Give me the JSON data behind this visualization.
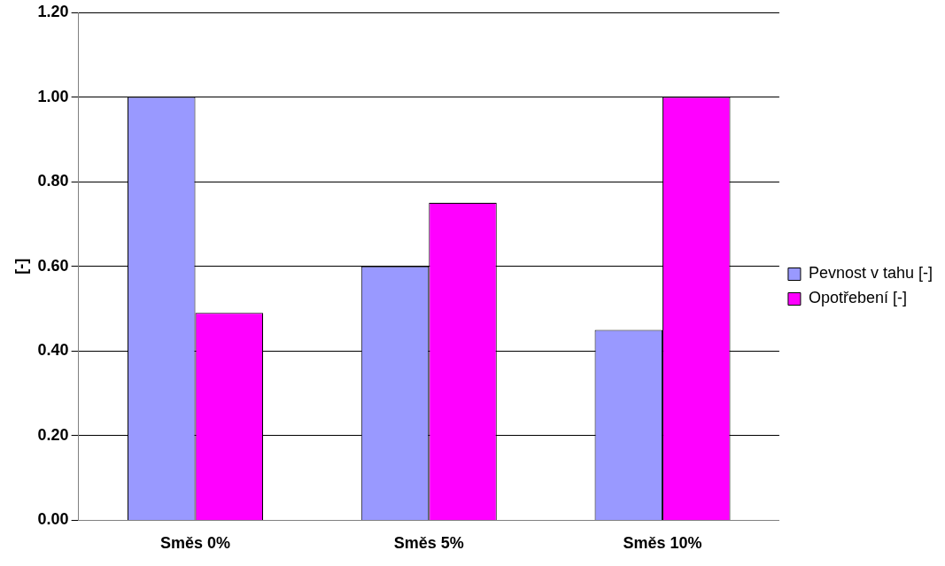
{
  "chart_data": {
    "type": "bar",
    "ylabel": "[-]",
    "categories": [
      "Směs 0%",
      "Směs 5%",
      "Směs 10%"
    ],
    "series": [
      {
        "name": "Pevnost v tahu [-]",
        "color": "#9999ff",
        "values": [
          1.0,
          0.6,
          0.45
        ]
      },
      {
        "name": "Opotřebení [-]",
        "color": "#ff00ff",
        "values": [
          0.49,
          0.75,
          1.0
        ]
      }
    ],
    "ylim": [
      0,
      1.2
    ],
    "yticks": [
      {
        "value": 0,
        "label": "0.00"
      },
      {
        "value": 0.2,
        "label": "0.20"
      },
      {
        "value": 0.4,
        "label": "0.40"
      },
      {
        "value": 0.6,
        "label": "0.60"
      },
      {
        "value": 0.8,
        "label": "0.80"
      },
      {
        "value": 1,
        "label": "1.00"
      },
      {
        "value": 1.2,
        "label": "1.20"
      }
    ],
    "grid": "y",
    "legend": "right"
  }
}
